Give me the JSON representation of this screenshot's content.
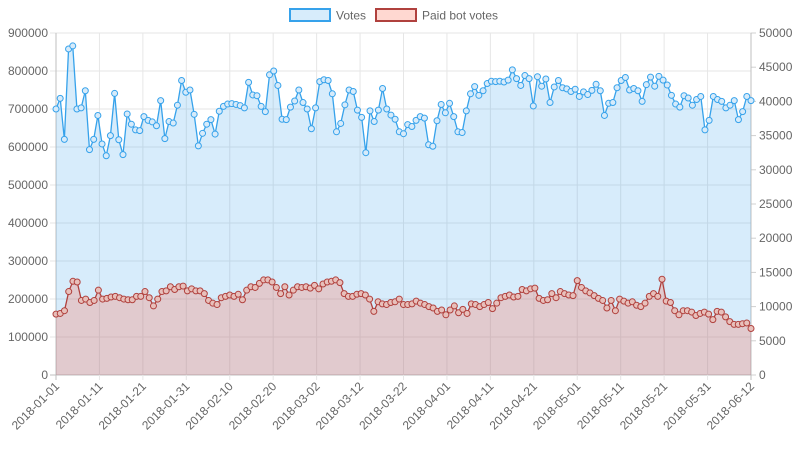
{
  "chart_data": {
    "type": "line",
    "title": "",
    "xlabel": "",
    "ylabel": "",
    "legend_position": "top",
    "grid": true,
    "y_left": {
      "min": 0,
      "max": 900000,
      "ticks": [
        0,
        100000,
        200000,
        300000,
        400000,
        500000,
        600000,
        700000,
        800000,
        900000
      ]
    },
    "y_right": {
      "min": 0,
      "max": 50000,
      "ticks": [
        0,
        5000,
        10000,
        15000,
        20000,
        25000,
        30000,
        35000,
        40000,
        45000,
        50000
      ]
    },
    "x_tick_labels": [
      "2018-01-01",
      "2018-01-11",
      "2018-01-21",
      "2018-01-31",
      "2018-02-10",
      "2018-02-20",
      "2018-03-02",
      "2018-03-12",
      "2018-03-22",
      "2018-04-01",
      "2018-04-11",
      "2018-04-21",
      "2018-05-01",
      "2018-05-11",
      "2018-05-21",
      "2018-05-31",
      "2018-06-12"
    ],
    "x_start": "2018-01-01",
    "x_end": "2018-06-12",
    "series": [
      {
        "name": "Votes",
        "axis": "left",
        "line_color": "#36a2eb",
        "fill_color": "rgba(54,162,235,0.2)",
        "values": [
          700000,
          728000,
          620000,
          858000,
          866000,
          700000,
          703000,
          748000,
          593000,
          620000,
          683000,
          608000,
          577000,
          630000,
          741000,
          619000,
          580000,
          687000,
          660000,
          645000,
          643000,
          680000,
          670000,
          666000,
          656000,
          722000,
          622000,
          667000,
          663000,
          710000,
          775000,
          744000,
          750000,
          686000,
          603000,
          636000,
          660000,
          672000,
          634000,
          694000,
          707000,
          713000,
          714000,
          712000,
          709000,
          703000,
          770000,
          737000,
          735000,
          707000,
          693000,
          790000,
          800000,
          762000,
          673000,
          672000,
          705000,
          721000,
          750000,
          717000,
          700000,
          648000,
          703000,
          772000,
          777000,
          775000,
          740000,
          640000,
          662000,
          711000,
          750000,
          746000,
          697000,
          678000,
          585000,
          695000,
          667000,
          697000,
          754000,
          700000,
          684000,
          673000,
          640000,
          635000,
          659000,
          654000,
          670000,
          680000,
          676000,
          606000,
          602000,
          669000,
          712000,
          690000,
          715000,
          680000,
          640000,
          638000,
          695000,
          740000,
          759000,
          736000,
          748000,
          767000,
          773000,
          772000,
          773000,
          771000,
          776000,
          803000,
          780000,
          762000,
          788000,
          780000,
          708000,
          785000,
          760000,
          779000,
          717000,
          758000,
          775000,
          756000,
          753000,
          746000,
          752000,
          733000,
          745000,
          738000,
          749000,
          765000,
          748000,
          683000,
          715000,
          717000,
          756000,
          775000,
          783000,
          750000,
          754000,
          748000,
          720000,
          764000,
          784000,
          760000,
          786000,
          776000,
          763000,
          736000,
          713000,
          705000,
          735000,
          729000,
          710000,
          725000,
          733000,
          645000,
          670000,
          733000,
          725000,
          720000,
          703000,
          710000,
          722000,
          672000,
          693000,
          733000,
          722000
        ],
        "values_note": "read on left axis (votes)"
      },
      {
        "name": "Paid bot votes",
        "axis": "right",
        "line_color": "#b0413e",
        "fill_color": "rgba(255,99,71,0.25)",
        "values": [
          8900,
          9000,
          9400,
          12200,
          13700,
          13600,
          10900,
          11100,
          10600,
          10900,
          12400,
          11100,
          11200,
          11400,
          11500,
          11300,
          11100,
          11000,
          11000,
          11500,
          11500,
          12200,
          11300,
          10100,
          11100,
          12200,
          12300,
          12900,
          12500,
          12900,
          13000,
          12300,
          12600,
          12300,
          12300,
          11900,
          10900,
          10500,
          10300,
          11300,
          11500,
          11700,
          11500,
          11800,
          11000,
          12400,
          12900,
          12800,
          13400,
          13900,
          13900,
          13600,
          12800,
          11900,
          12900,
          11700,
          12400,
          12900,
          12800,
          12900,
          12700,
          13100,
          12600,
          13300,
          13600,
          13700,
          13900,
          13500,
          11900,
          11500,
          11500,
          11800,
          11900,
          11700,
          11100,
          9300,
          10700,
          10400,
          10300,
          10600,
          10700,
          11100,
          10300,
          10300,
          10400,
          10800,
          10500,
          10300,
          10000,
          9800,
          9300,
          9500,
          8800,
          9500,
          10100,
          9100,
          9600,
          9000,
          10400,
          10300,
          10000,
          10300,
          10600,
          9700,
          10500,
          11300,
          11500,
          11700,
          11400,
          11500,
          12500,
          12300,
          12600,
          12700,
          11200,
          10900,
          11000,
          11900,
          11300,
          12200,
          11900,
          11700,
          11600,
          13800,
          12800,
          12300,
          12000,
          11600,
          11200,
          10900,
          9800,
          10900,
          9400,
          11100,
          10800,
          10500,
          10700,
          10200,
          10000,
          10500,
          11500,
          11900,
          11500,
          14000,
          10800,
          10600,
          9400,
          8800,
          9400,
          9400,
          9200,
          8700,
          9000,
          9200,
          8900,
          8100,
          9300,
          9200,
          8500,
          7800,
          7400,
          7400,
          7500,
          7600,
          6800
        ]
      }
    ]
  }
}
